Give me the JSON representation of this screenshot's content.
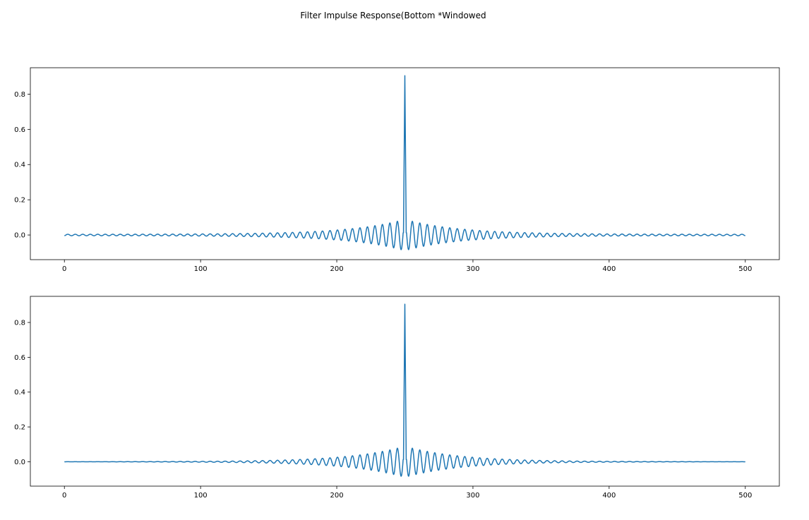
{
  "figure": {
    "title": "Filter Impulse Response(Bottom *Windowed"
  },
  "chart_data": [
    {
      "type": "line",
      "title": "",
      "xlabel": "",
      "ylabel": "",
      "xlim": [
        -25,
        525
      ],
      "ylim": [
        -0.14,
        0.95
      ],
      "xticks": [
        0,
        100,
        200,
        300,
        400,
        500
      ],
      "yticks": [
        0.0,
        0.2,
        0.4,
        0.6,
        0.8
      ],
      "xtick_labels": [
        "0",
        "100",
        "200",
        "300",
        "400",
        "500"
      ],
      "ytick_labels": [
        "0.0",
        "0.2",
        "0.4",
        "0.6",
        "0.8"
      ],
      "grid": false,
      "color": "#1f77b4",
      "series": [
        {
          "name": "",
          "x_start": 0,
          "x_end": 500,
          "center": 250,
          "peak": 0.905,
          "ripple_period": 5.5,
          "envelope_amplitude": 0.085,
          "envelope_decay_scale": 40,
          "envelope_floor": 0.004,
          "window": "none"
        }
      ]
    },
    {
      "type": "line",
      "title": "",
      "xlabel": "",
      "ylabel": "",
      "xlim": [
        -25,
        525
      ],
      "ylim": [
        -0.14,
        0.95
      ],
      "xticks": [
        0,
        100,
        200,
        300,
        400,
        500
      ],
      "yticks": [
        0.0,
        0.2,
        0.4,
        0.6,
        0.8
      ],
      "xtick_labels": [
        "0",
        "100",
        "200",
        "300",
        "400",
        "500"
      ],
      "ytick_labels": [
        "0.0",
        "0.2",
        "0.4",
        "0.6",
        "0.8"
      ],
      "grid": false,
      "color": "#1f77b4",
      "series": [
        {
          "name": "",
          "x_start": 0,
          "x_end": 500,
          "center": 250,
          "peak": 0.905,
          "ripple_period": 5.5,
          "envelope_amplitude": 0.085,
          "envelope_decay_scale": 40,
          "envelope_floor": 0.004,
          "window": "hamming"
        }
      ]
    }
  ]
}
